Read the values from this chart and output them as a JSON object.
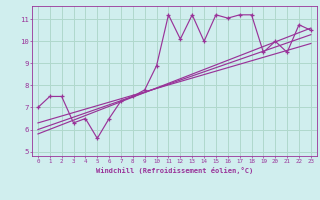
{
  "xlabel": "Windchill (Refroidissement éolien,°C)",
  "background_color": "#d0eeee",
  "grid_color": "#b0d8cc",
  "line_color": "#993399",
  "xlim": [
    -0.5,
    23.5
  ],
  "ylim": [
    4.8,
    11.6
  ],
  "yticks": [
    5,
    6,
    7,
    8,
    9,
    10,
    11
  ],
  "xticks": [
    0,
    1,
    2,
    3,
    4,
    5,
    6,
    7,
    8,
    9,
    10,
    11,
    12,
    13,
    14,
    15,
    16,
    17,
    18,
    19,
    20,
    21,
    22,
    23
  ],
  "scatter_x": [
    0,
    1,
    2,
    3,
    4,
    5,
    6,
    7,
    8,
    9,
    10,
    11,
    12,
    13,
    14,
    15,
    16,
    17,
    18,
    19,
    20,
    21,
    22,
    23
  ],
  "scatter_y": [
    7.0,
    7.5,
    7.5,
    6.3,
    6.5,
    5.6,
    6.5,
    7.3,
    7.5,
    7.8,
    8.9,
    11.2,
    10.1,
    11.2,
    10.0,
    11.2,
    11.05,
    11.2,
    11.2,
    9.5,
    10.0,
    9.5,
    10.75,
    10.5
  ],
  "line1_x": [
    0,
    23
  ],
  "line1_y": [
    5.8,
    10.6
  ],
  "line2_x": [
    0,
    23
  ],
  "line2_y": [
    6.0,
    10.3
  ],
  "line3_x": [
    0,
    23
  ],
  "line3_y": [
    6.3,
    9.9
  ]
}
